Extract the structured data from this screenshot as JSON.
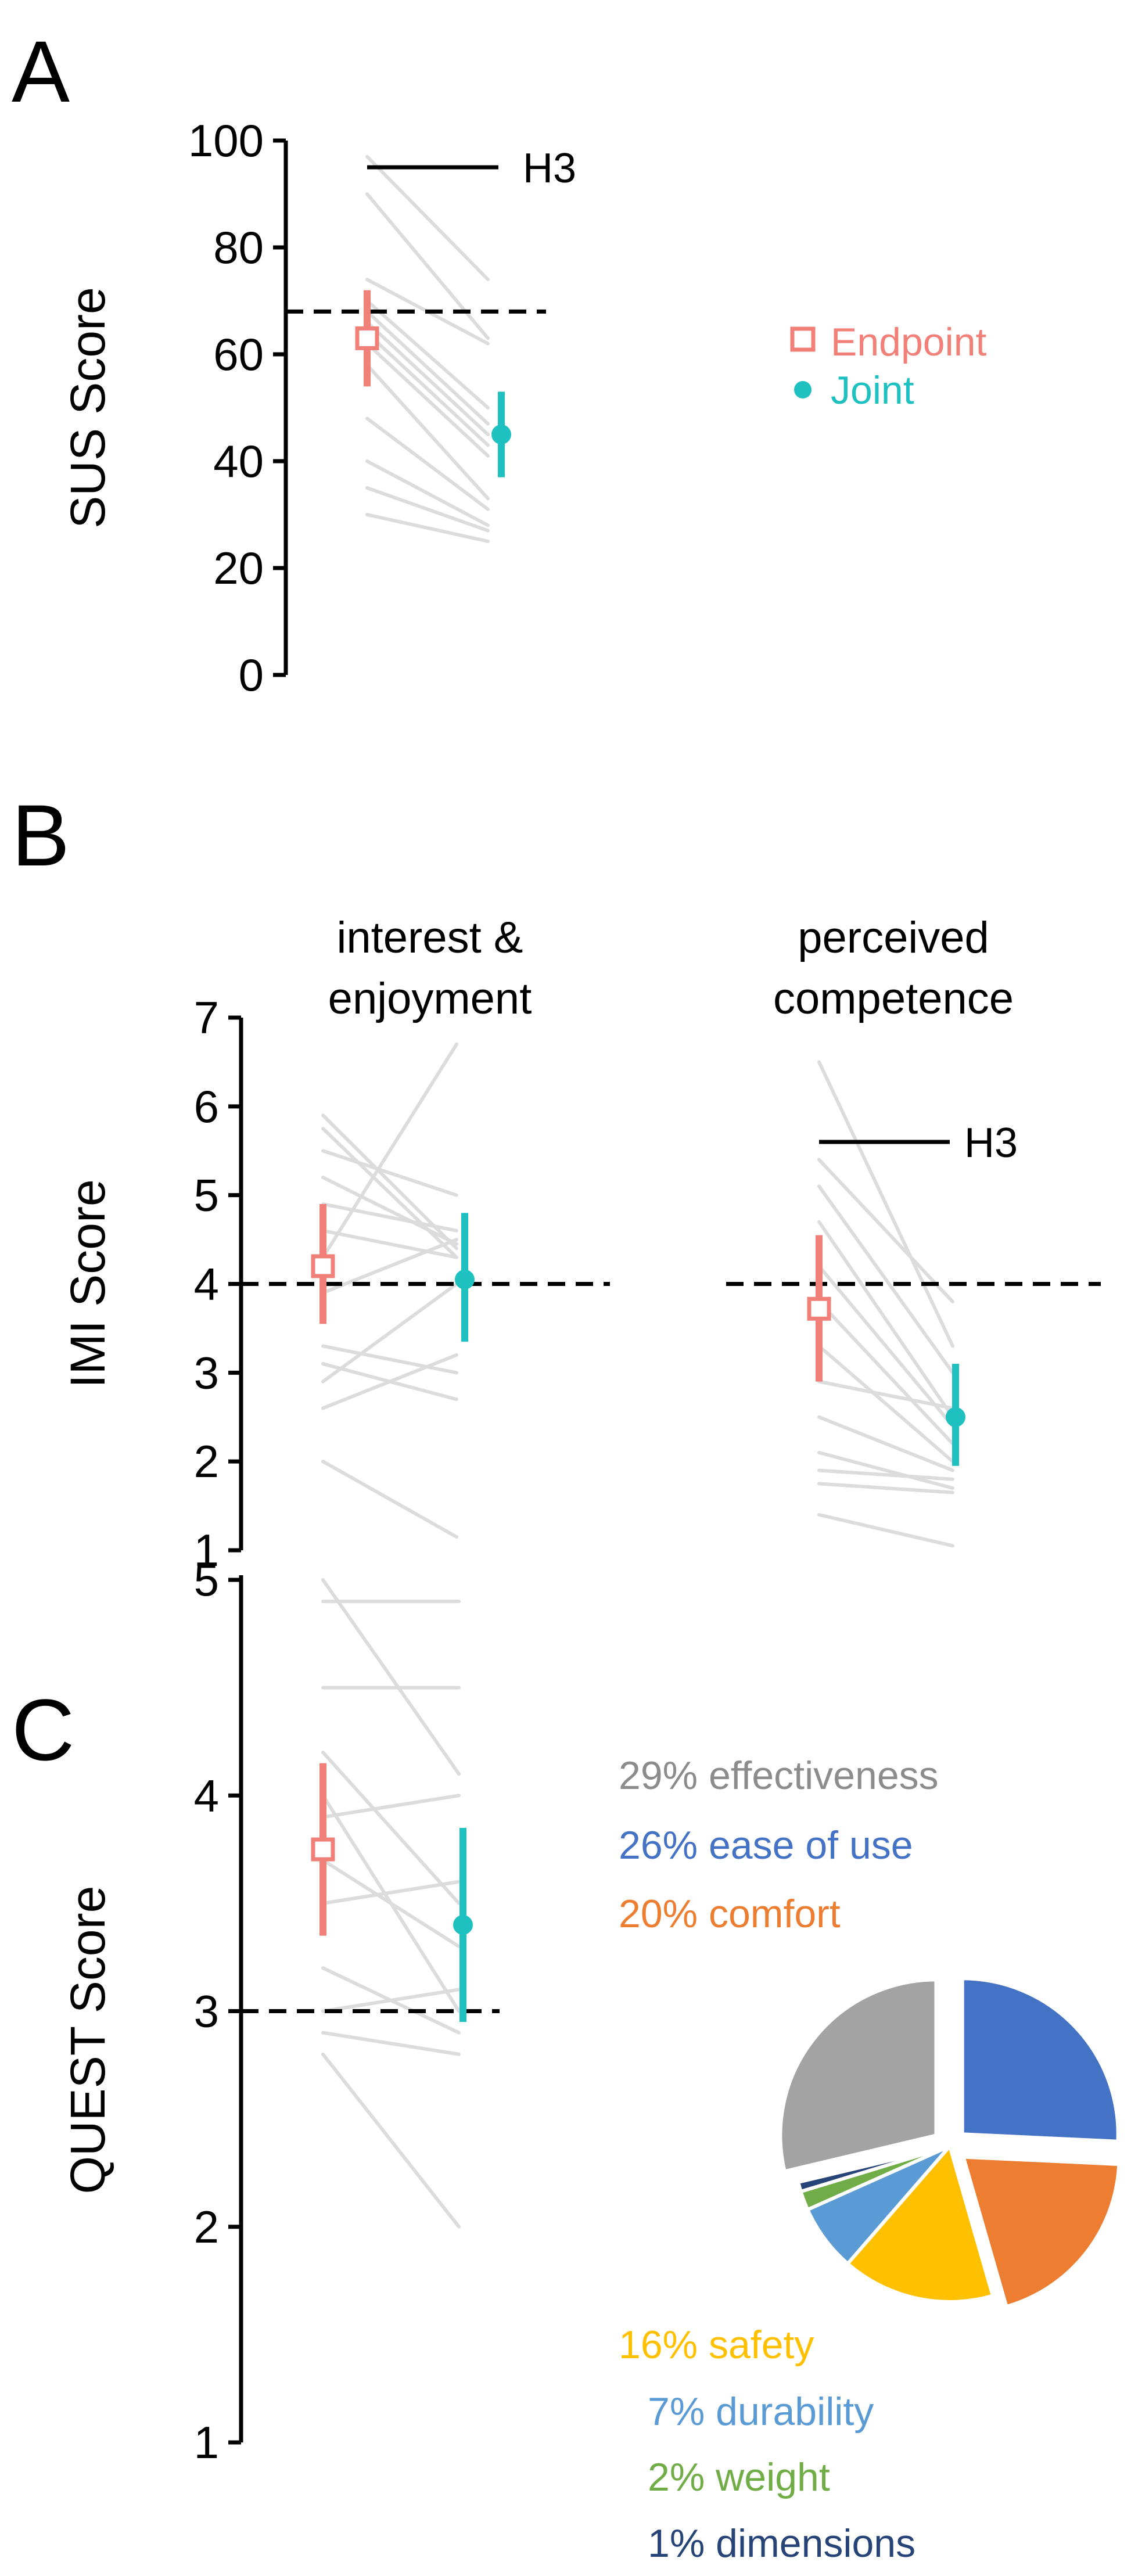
{
  "colors": {
    "endpoint": "#f08078",
    "joint": "#1fc0c0",
    "individual": "#dcdcdc",
    "axis": "#000000"
  },
  "legend": {
    "endpoint": "Endpoint",
    "joint": "Joint"
  },
  "chart_data": [
    {
      "panel": "A",
      "type": "line",
      "ylabel": "SUS Score",
      "ylim": [
        0,
        100
      ],
      "yticks": [
        0,
        20,
        40,
        60,
        80,
        100
      ],
      "reference_line": 68,
      "annotation": "H3",
      "annotation_y": 95,
      "series": [
        {
          "name": "Endpoint",
          "mean": 63,
          "ci": [
            54,
            72
          ]
        },
        {
          "name": "Joint",
          "mean": 45,
          "ci": [
            37,
            53
          ]
        }
      ],
      "individual_lines": [
        [
          97,
          74
        ],
        [
          90,
          63
        ],
        [
          74,
          62
        ],
        [
          70,
          50
        ],
        [
          68,
          47
        ],
        [
          66,
          45
        ],
        [
          64,
          43
        ],
        [
          62,
          41
        ],
        [
          58,
          33
        ],
        [
          48,
          31
        ],
        [
          40,
          28
        ],
        [
          35,
          27
        ],
        [
          30,
          25
        ]
      ]
    },
    {
      "panel": "B",
      "type": "line",
      "ylabel": "IMI Score",
      "ylim": [
        1,
        7
      ],
      "yticks": [
        1,
        2,
        3,
        4,
        5,
        6,
        7
      ],
      "reference_line": 4,
      "subplots": [
        {
          "title": [
            "interest &",
            "enjoyment"
          ],
          "series": [
            {
              "name": "Endpoint",
              "mean": 4.2,
              "ci": [
                3.55,
                4.9
              ]
            },
            {
              "name": "Joint",
              "mean": 4.05,
              "ci": [
                3.35,
                4.8
              ]
            }
          ],
          "individual_lines": [
            [
              5.9,
              4.4
            ],
            [
              5.75,
              4.3
            ],
            [
              5.5,
              5.0
            ],
            [
              5.2,
              4.45
            ],
            [
              4.9,
              4.6
            ],
            [
              4.6,
              4.3
            ],
            [
              4.3,
              6.7
            ],
            [
              3.9,
              4.5
            ],
            [
              3.3,
              3.0
            ],
            [
              3.1,
              2.7
            ],
            [
              2.9,
              4.0
            ],
            [
              2.6,
              3.2
            ],
            [
              2.0,
              1.15
            ]
          ]
        },
        {
          "title": [
            "perceived",
            "competence"
          ],
          "annotation": "H3",
          "annotation_y": 5.6,
          "series": [
            {
              "name": "Endpoint",
              "mean": 3.72,
              "ci": [
                2.9,
                4.55
              ]
            },
            {
              "name": "Joint",
              "mean": 2.5,
              "ci": [
                1.95,
                3.1
              ]
            }
          ],
          "individual_lines": [
            [
              6.5,
              3.3
            ],
            [
              5.4,
              3.8
            ],
            [
              5.1,
              3.0
            ],
            [
              4.7,
              2.5
            ],
            [
              4.2,
              2.4
            ],
            [
              3.8,
              2.2
            ],
            [
              3.3,
              2.0
            ],
            [
              2.9,
              2.6
            ],
            [
              2.5,
              1.9
            ],
            [
              2.1,
              1.7
            ],
            [
              1.9,
              1.8
            ],
            [
              1.75,
              1.65
            ],
            [
              1.4,
              1.05
            ]
          ]
        }
      ]
    },
    {
      "panel": "C",
      "type": "line",
      "ylabel": "QUEST Score",
      "ylim": [
        1,
        5
      ],
      "yticks": [
        1,
        2,
        3,
        4,
        5
      ],
      "reference_line": 3,
      "series": [
        {
          "name": "Endpoint",
          "mean": 3.75,
          "ci": [
            3.35,
            4.15
          ]
        },
        {
          "name": "Joint",
          "mean": 3.4,
          "ci": [
            2.95,
            3.85
          ]
        }
      ],
      "individual_lines": [
        [
          5.0,
          4.1
        ],
        [
          4.9,
          4.9
        ],
        [
          4.5,
          4.5
        ],
        [
          4.2,
          3.5
        ],
        [
          4.0,
          3.0
        ],
        [
          3.9,
          4.0
        ],
        [
          3.7,
          3.3
        ],
        [
          3.5,
          3.6
        ],
        [
          3.2,
          2.9
        ],
        [
          3.0,
          3.1
        ],
        [
          2.9,
          2.8
        ],
        [
          2.8,
          2.0
        ]
      ]
    },
    {
      "panel": "C-pie",
      "type": "pie",
      "slices": [
        {
          "label": "29% effectiveness",
          "value": 29,
          "color": "#a3a3a3",
          "explode": true
        },
        {
          "label": "26% ease of use",
          "value": 26,
          "color": "#4472c4",
          "explode": true
        },
        {
          "label": "20% comfort",
          "value": 20,
          "color": "#ed7d31",
          "explode": true
        },
        {
          "label": "16% safety",
          "value": 16,
          "color": "#ffc000",
          "explode": false
        },
        {
          "label": "7% durability",
          "value": 7,
          "color": "#5b9bd5",
          "explode": false
        },
        {
          "label": "2% weight",
          "value": 2,
          "color": "#70ad47",
          "explode": false
        },
        {
          "label": "1% dimensions",
          "value": 1,
          "color": "#264478",
          "explode": false
        }
      ]
    }
  ]
}
